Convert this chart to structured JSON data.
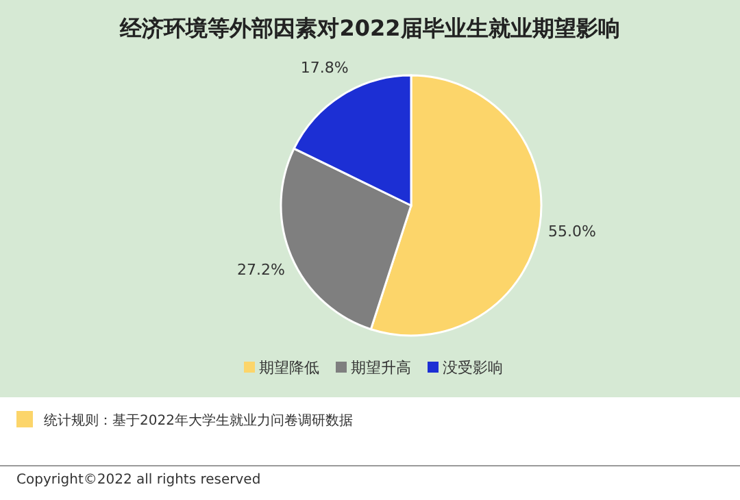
{
  "chart_data": {
    "type": "pie",
    "title": "经济环境等外部因素对2022届毕业生就业期望影响",
    "categories": [
      "期望降低",
      "期望升高",
      "没受影响"
    ],
    "values": [
      55.0,
      27.2,
      17.8
    ],
    "value_labels": [
      "55.0%",
      "27.2%",
      "17.8%"
    ],
    "colors": [
      "#fcd56a",
      "#7f7f7f",
      "#1c2fd4"
    ],
    "legend": "bottom",
    "annotations": [
      "统计规则：基于2022年大学生就业力问卷调研数据",
      "Copyright©2022 all rights reserved"
    ]
  }
}
